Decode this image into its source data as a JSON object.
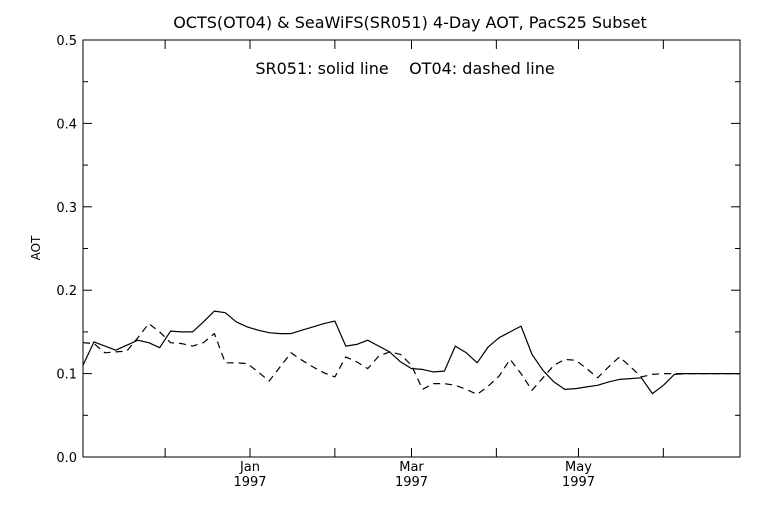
{
  "chart_data": {
    "type": "line",
    "title": "OCTS(OT04) & SeaWiFS(SR051) 4-Day AOT, PacS25 Subset",
    "annotation": "SR051: solid line    OT04: dashed line",
    "ylabel": "AOT",
    "xlabel": "",
    "ylim": [
      0.0,
      0.5
    ],
    "yticks": [
      "0.0",
      "0.1",
      "0.2",
      "0.3",
      "0.4",
      "0.5"
    ],
    "xticks": [
      {
        "month": "Jan",
        "year": "1997"
      },
      {
        "month": "Mar",
        "year": "1997"
      },
      {
        "month": "May",
        "year": "1997"
      }
    ],
    "x": [
      "1996-11-01",
      "1996-11-05",
      "1996-11-09",
      "1996-11-13",
      "1996-11-17",
      "1996-11-21",
      "1996-11-25",
      "1996-11-29",
      "1996-12-03",
      "1996-12-07",
      "1996-12-11",
      "1996-12-15",
      "1996-12-19",
      "1996-12-23",
      "1996-12-27",
      "1996-12-31",
      "1997-01-04",
      "1997-01-08",
      "1997-01-12",
      "1997-01-16",
      "1997-01-20",
      "1997-01-24",
      "1997-01-28",
      "1997-02-01",
      "1997-02-05",
      "1997-02-09",
      "1997-02-13",
      "1997-02-17",
      "1997-02-21",
      "1997-02-25",
      "1997-03-01",
      "1997-03-05",
      "1997-03-09",
      "1997-03-13",
      "1997-03-17",
      "1997-03-21",
      "1997-03-25",
      "1997-03-29",
      "1997-04-02",
      "1997-04-06",
      "1997-04-10",
      "1997-04-14",
      "1997-04-18",
      "1997-04-22",
      "1997-04-26",
      "1997-04-30",
      "1997-05-04",
      "1997-05-08",
      "1997-05-12",
      "1997-05-16",
      "1997-05-20",
      "1997-05-24",
      "1997-05-28",
      "1997-06-01",
      "1997-06-05",
      "1997-06-09",
      "1997-06-13",
      "1997-06-17",
      "1997-06-21",
      "1997-06-25",
      "1997-06-29"
    ],
    "series": [
      {
        "name": "SR051",
        "style": "solid",
        "values": [
          0.11,
          0.138,
          0.133,
          0.128,
          0.134,
          0.14,
          0.137,
          0.131,
          0.151,
          0.15,
          0.15,
          0.162,
          0.175,
          0.173,
          0.162,
          0.156,
          0.152,
          0.149,
          0.148,
          0.148,
          0.152,
          0.156,
          0.16,
          0.163,
          0.133,
          0.135,
          0.14,
          0.133,
          0.126,
          0.114,
          0.106,
          0.105,
          0.102,
          0.103,
          0.133,
          0.125,
          0.113,
          0.132,
          0.143,
          0.15,
          0.157,
          0.123,
          0.104,
          0.09,
          0.081,
          0.082,
          0.084,
          0.086,
          0.09,
          0.093,
          0.094,
          0.095,
          0.076,
          0.086,
          0.099,
          0.1,
          0.1,
          0.1,
          0.1,
          0.1,
          0.1
        ]
      },
      {
        "name": "OT04",
        "style": "dashed",
        "values": [
          0.137,
          0.136,
          0.125,
          0.126,
          0.127,
          0.143,
          0.16,
          0.15,
          0.137,
          0.136,
          0.133,
          0.137,
          0.148,
          0.113,
          0.113,
          0.112,
          0.102,
          0.091,
          0.108,
          0.125,
          0.116,
          0.108,
          0.101,
          0.096,
          0.12,
          0.114,
          0.106,
          0.121,
          0.126,
          0.123,
          0.11,
          0.081,
          0.088,
          0.088,
          0.086,
          0.081,
          0.075,
          0.085,
          0.097,
          0.117,
          0.1,
          0.08,
          0.095,
          0.11,
          0.117,
          0.116,
          0.106,
          0.095,
          0.108,
          0.12,
          0.108,
          0.096,
          0.099,
          0.1,
          0.1,
          0.1,
          0.1,
          0.1,
          0.1,
          0.1,
          0.1
        ]
      }
    ],
    "grid": false,
    "legend": "text annotation at top-center"
  }
}
